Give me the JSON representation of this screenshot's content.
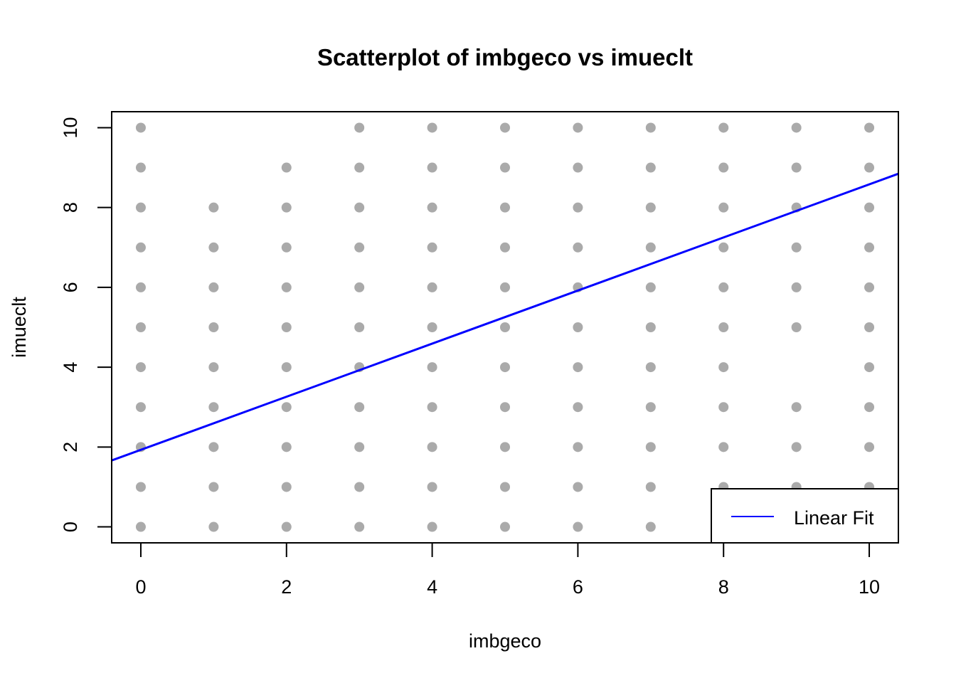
{
  "chart_data": {
    "type": "scatter",
    "title": "Scatterplot of imbgeco vs imueclt",
    "xlabel": "imbgeco",
    "ylabel": "imueclt",
    "xlim": [
      -0.4,
      10.4
    ],
    "ylim": [
      -0.4,
      10.4
    ],
    "xticks": [
      0,
      2,
      4,
      6,
      8,
      10
    ],
    "yticks": [
      0,
      2,
      4,
      6,
      8,
      10
    ],
    "grid": false,
    "legend_position": "bottom-right",
    "colors": {
      "points": "#aaaaaa",
      "fit_line": "#0000ff",
      "axes": "#000000"
    },
    "series": [
      {
        "kind": "points",
        "points": [
          [
            0,
            0
          ],
          [
            0,
            1
          ],
          [
            0,
            2
          ],
          [
            0,
            3
          ],
          [
            0,
            4
          ],
          [
            0,
            5
          ],
          [
            0,
            6
          ],
          [
            0,
            7
          ],
          [
            0,
            8
          ],
          [
            0,
            9
          ],
          [
            0,
            10
          ],
          [
            1,
            0
          ],
          [
            1,
            1
          ],
          [
            1,
            2
          ],
          [
            1,
            3
          ],
          [
            1,
            4
          ],
          [
            1,
            5
          ],
          [
            1,
            6
          ],
          [
            1,
            7
          ],
          [
            1,
            8
          ],
          [
            2,
            0
          ],
          [
            2,
            1
          ],
          [
            2,
            2
          ],
          [
            2,
            3
          ],
          [
            2,
            4
          ],
          [
            2,
            5
          ],
          [
            2,
            6
          ],
          [
            2,
            7
          ],
          [
            2,
            8
          ],
          [
            2,
            9
          ],
          [
            3,
            0
          ],
          [
            3,
            1
          ],
          [
            3,
            2
          ],
          [
            3,
            3
          ],
          [
            3,
            4
          ],
          [
            3,
            5
          ],
          [
            3,
            6
          ],
          [
            3,
            7
          ],
          [
            3,
            8
          ],
          [
            3,
            9
          ],
          [
            3,
            10
          ],
          [
            4,
            0
          ],
          [
            4,
            1
          ],
          [
            4,
            2
          ],
          [
            4,
            3
          ],
          [
            4,
            4
          ],
          [
            4,
            5
          ],
          [
            4,
            6
          ],
          [
            4,
            7
          ],
          [
            4,
            8
          ],
          [
            4,
            9
          ],
          [
            4,
            10
          ],
          [
            5,
            0
          ],
          [
            5,
            1
          ],
          [
            5,
            2
          ],
          [
            5,
            3
          ],
          [
            5,
            4
          ],
          [
            5,
            5
          ],
          [
            5,
            6
          ],
          [
            5,
            7
          ],
          [
            5,
            8
          ],
          [
            5,
            9
          ],
          [
            5,
            10
          ],
          [
            6,
            0
          ],
          [
            6,
            1
          ],
          [
            6,
            2
          ],
          [
            6,
            3
          ],
          [
            6,
            4
          ],
          [
            6,
            5
          ],
          [
            6,
            6
          ],
          [
            6,
            7
          ],
          [
            6,
            8
          ],
          [
            6,
            9
          ],
          [
            6,
            10
          ],
          [
            7,
            0
          ],
          [
            7,
            1
          ],
          [
            7,
            2
          ],
          [
            7,
            3
          ],
          [
            7,
            4
          ],
          [
            7,
            5
          ],
          [
            7,
            6
          ],
          [
            7,
            7
          ],
          [
            7,
            8
          ],
          [
            7,
            9
          ],
          [
            7,
            10
          ],
          [
            8,
            1
          ],
          [
            8,
            2
          ],
          [
            8,
            3
          ],
          [
            8,
            4
          ],
          [
            8,
            5
          ],
          [
            8,
            6
          ],
          [
            8,
            7
          ],
          [
            8,
            8
          ],
          [
            8,
            9
          ],
          [
            8,
            10
          ],
          [
            9,
            1
          ],
          [
            9,
            2
          ],
          [
            9,
            3
          ],
          [
            9,
            5
          ],
          [
            9,
            6
          ],
          [
            9,
            7
          ],
          [
            9,
            8
          ],
          [
            9,
            9
          ],
          [
            9,
            10
          ],
          [
            10,
            1
          ],
          [
            10,
            2
          ],
          [
            10,
            3
          ],
          [
            10,
            4
          ],
          [
            10,
            5
          ],
          [
            10,
            6
          ],
          [
            10,
            7
          ],
          [
            10,
            8
          ],
          [
            10,
            9
          ],
          [
            10,
            10
          ]
        ]
      },
      {
        "name": "Linear Fit",
        "kind": "line",
        "intercept": 1.93,
        "slope": 0.665
      }
    ]
  }
}
